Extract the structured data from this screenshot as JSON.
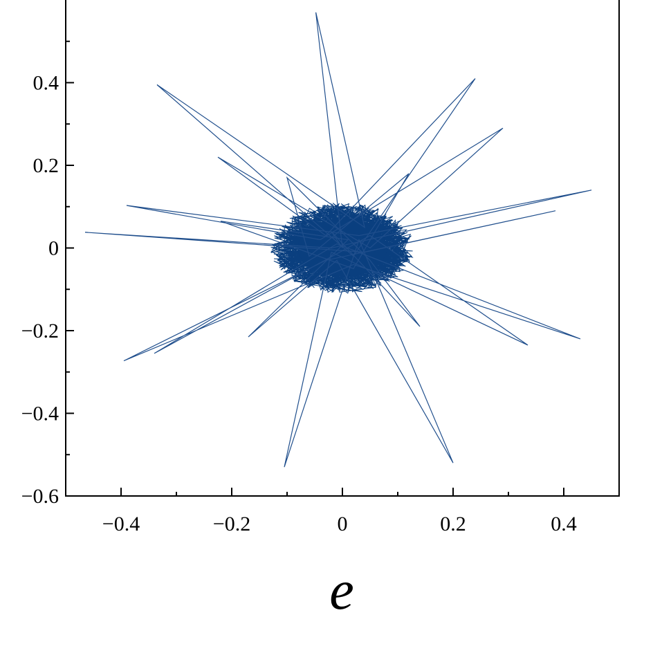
{
  "chart_data": {
    "type": "line",
    "title": "",
    "xlabel": "e",
    "ylabel": "",
    "xlim": [
      -0.5,
      0.5
    ],
    "ylim": [
      -0.6,
      0.6
    ],
    "x_ticks": [
      -0.4,
      -0.2,
      0,
      0.2,
      0.4
    ],
    "x_tick_labels": [
      "−0.4",
      "−0.2",
      "0",
      "0.2",
      "0.4"
    ],
    "y_ticks": [
      -0.6,
      -0.4,
      -0.2,
      0,
      0.2,
      0.4
    ],
    "y_tick_labels": [
      "−0.6",
      "−0.4",
      "−0.2",
      "0",
      "0.2",
      "0.4"
    ],
    "grid": false,
    "line_color": "#1f4e8c",
    "core_color": "#0a3f7f",
    "dense_core": {
      "center": [
        0.0,
        0.0
      ],
      "radius_x": 0.13,
      "radius_y": 0.11
    },
    "series": [
      {
        "values": [
          [
            0.0,
            0.0
          ],
          [
            -0.048,
            0.57
          ],
          [
            0.04,
            0.05
          ],
          [
            -0.335,
            0.395
          ],
          [
            0.02,
            -0.02
          ],
          [
            0.24,
            0.41
          ],
          [
            -0.03,
            0.03
          ],
          [
            -0.225,
            0.22
          ],
          [
            0.05,
            0.0
          ],
          [
            0.29,
            0.29
          ],
          [
            -0.04,
            0.02
          ],
          [
            -0.39,
            0.103
          ],
          [
            0.03,
            0.03
          ],
          [
            0.45,
            0.14
          ],
          [
            -0.02,
            0.0
          ],
          [
            -0.465,
            0.038
          ],
          [
            0.04,
            -0.01
          ],
          [
            0.385,
            0.09
          ],
          [
            -0.03,
            -0.03
          ],
          [
            -0.395,
            -0.273
          ],
          [
            0.02,
            -0.04
          ],
          [
            0.43,
            -0.22
          ],
          [
            -0.01,
            0.01
          ],
          [
            -0.34,
            -0.255
          ],
          [
            0.05,
            0.03
          ],
          [
            0.335,
            -0.235
          ],
          [
            -0.02,
            -0.01
          ],
          [
            -0.105,
            -0.53
          ],
          [
            0.03,
            0.02
          ],
          [
            0.2,
            -0.52
          ],
          [
            -0.01,
            -0.03
          ],
          [
            -0.17,
            -0.215
          ],
          [
            0.01,
            0.02
          ],
          [
            -0.22,
            0.065
          ],
          [
            0.02,
            -0.05
          ],
          [
            0.12,
            0.18
          ],
          [
            -0.06,
            -0.02
          ],
          [
            -0.1,
            0.17
          ],
          [
            0.05,
            -0.03
          ],
          [
            0.14,
            -0.19
          ],
          [
            -0.02,
            0.04
          ],
          [
            0.0,
            0.0
          ]
        ]
      }
    ]
  }
}
